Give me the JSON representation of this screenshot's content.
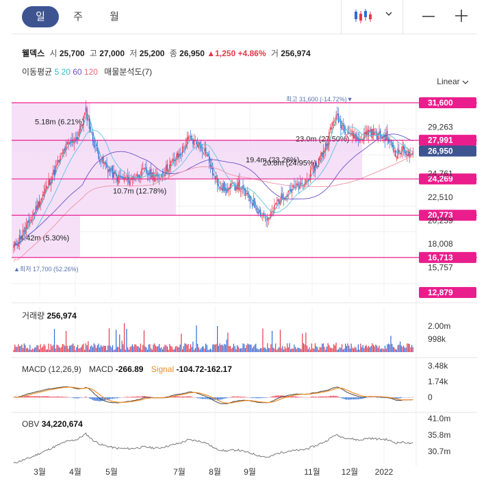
{
  "tabs": [
    "일",
    "주",
    "월"
  ],
  "active_tab": 0,
  "window_icons": {
    "chart_type": "candlestick-icon",
    "menu": "chevron-down-icon",
    "minimize": "minimize-icon",
    "maximize": "plus-icon"
  },
  "stock": {
    "name": "웰덱스",
    "open_label": "시",
    "open": "25,700",
    "high_label": "고",
    "high": "27,000",
    "low_label": "저",
    "low": "25,200",
    "close_label": "종",
    "close": "26,950",
    "change": "▲1,250",
    "change_pct": "+4.86%",
    "volume_label": "거",
    "volume": "256,974"
  },
  "ma_legend": {
    "label": "이동평균",
    "periods": [
      {
        "value": "5",
        "color": "#2eb8c9"
      },
      {
        "value": "20",
        "color": "#2eb8c9"
      },
      {
        "value": "60",
        "color": "#6b4fc4"
      },
      {
        "value": "120",
        "color": "#e8667a"
      }
    ],
    "profile_label": "매물분석도(7)"
  },
  "scale_button": "Linear",
  "chart_data": {
    "type": "candlestick",
    "x_labels": [
      "3월",
      "4월",
      "5월",
      "7월",
      "8월",
      "9월",
      "11월",
      "12월",
      "2022"
    ],
    "y_ticks": [
      "29,263",
      "24,761",
      "22,510",
      "20,259",
      "18,008",
      "15,757"
    ],
    "ylim": [
      12879,
      31600
    ],
    "price_tags": [
      {
        "value": 31600,
        "label": "31,600",
        "color": "#e91e8c"
      },
      {
        "value": 27991,
        "label": "27,991",
        "color": "#e91e8c"
      },
      {
        "value": 26950,
        "label": "26,950",
        "color": "#3d5491"
      },
      {
        "value": 24269,
        "label": "24,269",
        "color": "#e91e8c"
      },
      {
        "value": 20773,
        "label": "20,773",
        "color": "#e91e8c"
      },
      {
        "value": 16713,
        "label": "16,713",
        "color": "#e91e8c"
      },
      {
        "value": 12879,
        "label": "12,879",
        "color": "#e91e8c"
      }
    ],
    "max_annotation": "최고 31,600 (-14.72%)▼",
    "min_annotation": "▲최저 17,700 (52.26%)",
    "volume_profile": [
      {
        "low": 16713,
        "high": 20773,
        "volume": "4.42m",
        "pct": "5.30%"
      },
      {
        "low": 20773,
        "high": 24269,
        "volume": "10.7m",
        "pct": "12.78%"
      },
      {
        "low": 24269,
        "high": 27991,
        "volume": "19.4m",
        "pct": "23.26%"
      },
      {
        "low": 27991,
        "high": 31600,
        "volume": "5.18m",
        "pct": "6.21%"
      }
    ],
    "extra_profile": [
      {
        "value": 26950,
        "volume": "23.0m",
        "pct": "27.50%"
      },
      {
        "value": 25500,
        "volume": "20.8m",
        "pct": "24.95%"
      }
    ],
    "volume_panel": {
      "title": "거래량",
      "value": "256,974",
      "ticks": [
        "2.00m",
        "998k"
      ]
    },
    "macd_panel": {
      "title": "MACD (12,26,9)",
      "macd_label": "MACD",
      "macd_value": "-266.89",
      "signal_label": "Signal",
      "signal_value": "-104.72",
      "hist_value": "-162.17",
      "ticks": [
        "3.48k",
        "1.74k",
        "0"
      ]
    },
    "obv_panel": {
      "title": "OBV",
      "value": "34,220,674",
      "ticks": [
        "41.0m",
        "35.8m",
        "30.7m"
      ]
    },
    "colors": {
      "up": "#e8364a",
      "down": "#2d6bd8",
      "ma5": "#2eb8c9",
      "ma20": "#5bc3e0",
      "ma60": "#6b4fc4",
      "ma120": "#f0909e",
      "profile": "#f3dbf7",
      "tag": "#e91e8c",
      "macd": "#444444",
      "signal": "#f08a24"
    }
  }
}
